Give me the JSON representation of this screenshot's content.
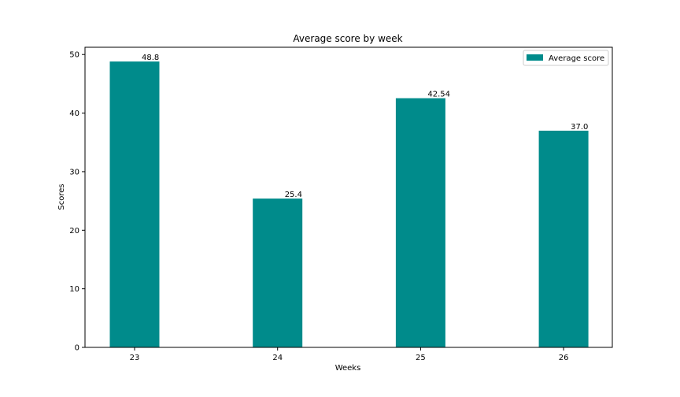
{
  "chart_data": {
    "type": "bar",
    "title": "Average score by week",
    "xlabel": "Weeks",
    "ylabel": "Scores",
    "categories": [
      "23",
      "24",
      "25",
      "26"
    ],
    "series": [
      {
        "name": "Average score",
        "values": [
          48.8,
          25.4,
          42.54,
          37.0
        ]
      }
    ],
    "data_labels": [
      "48.8",
      "25.4",
      "42.54",
      "37.0"
    ],
    "yticks": [
      0,
      10,
      20,
      30,
      40,
      50
    ],
    "ylim": [
      0,
      51.24
    ],
    "grid": false,
    "legend": "top-right",
    "bar_color": "#008b8b"
  }
}
